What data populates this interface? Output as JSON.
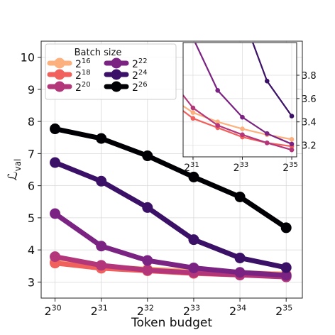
{
  "chart_data": {
    "type": "line",
    "xlabel": "Token budget",
    "ylabel_main": "ℒ",
    "ylabel_sub": "val",
    "x": [
      30,
      31,
      32,
      33,
      34,
      35
    ],
    "x_ticks": [
      {
        "base": "2",
        "exp": "30"
      },
      {
        "base": "2",
        "exp": "31"
      },
      {
        "base": "2",
        "exp": "32"
      },
      {
        "base": "2",
        "exp": "33"
      },
      {
        "base": "2",
        "exp": "34"
      },
      {
        "base": "2",
        "exp": "35"
      }
    ],
    "xlim": [
      29.7,
      35.35
    ],
    "ylim": [
      2.5,
      10.5
    ],
    "y_ticks": [
      "3",
      "4",
      "5",
      "6",
      "7",
      "8",
      "9",
      "10"
    ],
    "grid": true,
    "legend": {
      "title": "Batch size",
      "placement": "top-left",
      "columns": 2
    },
    "series": [
      {
        "base": "2",
        "exp": "16",
        "color": "#fcb07e",
        "values": [
          3.62,
          3.48,
          3.4,
          3.34,
          3.29,
          3.25
        ]
      },
      {
        "base": "2",
        "exp": "18",
        "color": "#f0605d",
        "values": [
          3.59,
          3.43,
          3.35,
          3.27,
          3.22,
          3.19
        ]
      },
      {
        "base": "2",
        "exp": "20",
        "color": "#b3367a",
        "values": [
          3.79,
          3.52,
          3.37,
          3.29,
          3.22,
          3.16
        ]
      },
      {
        "base": "2",
        "exp": "22",
        "color": "#7a2382",
        "values": [
          5.13,
          4.12,
          3.67,
          3.44,
          3.3,
          3.21
        ]
      },
      {
        "base": "2",
        "exp": "24",
        "color": "#3a1166",
        "values": [
          6.72,
          6.14,
          5.32,
          4.32,
          3.75,
          3.45
        ]
      },
      {
        "base": "2",
        "exp": "26",
        "color": "#000004",
        "values": [
          7.77,
          7.47,
          6.93,
          6.27,
          5.65,
          4.69
        ]
      }
    ],
    "inset": {
      "xlim": [
        30.6,
        35.2
      ],
      "ylim": [
        3.1,
        4.08
      ],
      "x_ticks": [
        {
          "base": "2",
          "exp": "31"
        },
        {
          "base": "2",
          "exp": "33"
        },
        {
          "base": "2",
          "exp": "35"
        }
      ],
      "x_tick_values": [
        31,
        33,
        35
      ],
      "y_ticks": [
        "3.2",
        "3.4",
        "3.6",
        "3.8"
      ],
      "y_tick_values": [
        3.2,
        3.4,
        3.6,
        3.8
      ],
      "grid": true
    }
  }
}
